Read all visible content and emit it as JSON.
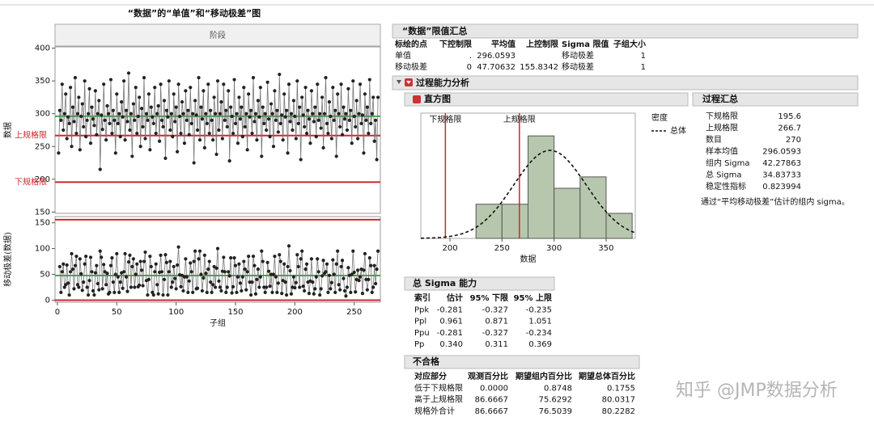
{
  "left_title": "“数据”的“单值”和“移动极差”图",
  "phase_header": "阶段",
  "chart_data": [
    {
      "type": "line",
      "ylabel": "数据",
      "ylim": [
        148,
        402
      ],
      "yticks": [
        150,
        200,
        250,
        300,
        350,
        400
      ],
      "xlim": [
        -2,
        272
      ],
      "color": "#222222",
      "lines": [
        {
          "value": 296.0593,
          "color": "#3cb043"
        },
        {
          "value": 266.7,
          "color": "#d0262e",
          "label": "上规格限"
        },
        {
          "value": 195.6,
          "color": "#d0262e",
          "label": "下规格限"
        }
      ],
      "values": [
        240,
        305,
        290,
        345,
        275,
        300,
        330,
        262,
        295,
        285,
        340,
        250,
        310,
        288,
        355,
        270,
        300,
        325,
        245,
        296,
        315,
        280,
        350,
        265,
        290,
        300,
        338,
        255,
        310,
        292,
        282,
        335,
        268,
        300,
        320,
        215,
        298,
        276,
        345,
        290,
        260,
        312,
        300,
        285,
        352,
        270,
        305,
        290,
        240,
        330,
        285,
        300,
        265,
        318,
        295,
        350,
        260,
        305,
        288,
        362,
        275,
        300,
        235,
        315,
        290,
        340,
        270,
        296,
        325,
        250,
        308,
        280,
        355,
        262,
        300,
        290,
        330,
        245,
        310,
        295,
        285,
        340,
        270,
        300,
        312,
        258,
        345,
        290,
        280,
        320,
        232,
        305,
        295,
        350,
        275,
        300,
        265,
        330,
        288,
        310,
        242,
        345,
        296,
        270,
        318,
        300,
        255,
        335,
        290,
        305,
        268,
        340,
        285,
        300,
        225,
        320,
        298,
        275,
        355,
        260,
        310,
        292,
        335,
        248,
        300,
        285,
        345,
        270,
        305,
        290,
        260,
        325,
        300,
        238,
        350,
        275,
        300,
        318,
        262,
        345,
        290,
        305,
        280,
        335,
        228,
        310,
        296,
        270,
        352,
        285,
        300,
        255,
        325,
        292,
        310,
        265,
        340,
        280,
        300,
        245,
        330,
        295,
        305,
        270,
        355,
        288,
        300,
        260,
        320,
        295,
        340,
        235,
        310,
        285,
        300,
        275,
        348,
        292,
        265,
        315,
        300,
        250,
        335,
        290,
        305,
        272,
        360,
        285,
        298,
        260,
        330,
        295,
        305,
        240,
        345,
        288,
        300,
        275,
        320,
        296,
        262,
        350,
        285,
        310,
        230,
        325,
        298,
        280,
        340,
        270,
        305,
        292,
        255,
        335,
        300,
        288,
        310,
        265,
        345,
        290,
        300,
        278,
        325,
        248,
        300,
        355,
        285,
        270,
        318,
        296,
        262,
        340,
        290,
        305,
        235,
        330,
        300,
        280,
        345,
        268,
        310,
        292,
        300,
        275,
        338,
        290,
        305,
        255,
        350,
        296,
        280,
        320,
        262,
        300,
        345,
        285,
        298,
        240,
        330,
        290,
        310,
        270,
        352,
        285,
        300,
        325,
        258,
        290,
        230,
        325
      ]
    },
    {
      "type": "line",
      "ylabel": "移动极差(数据)",
      "xlabel": "子组",
      "ylim": [
        -4,
        162
      ],
      "yticks": [
        0,
        50,
        100,
        150
      ],
      "xlim": [
        -2,
        272
      ],
      "xticks": [
        0,
        50,
        100,
        150,
        200,
        250
      ],
      "color": "#222222",
      "lines": [
        {
          "value": 47.70632,
          "color": "#3cb043"
        },
        {
          "value": 155.8342,
          "color": "#d0262e"
        },
        {
          "value": 0,
          "color": "#d0262e"
        }
      ],
      "values": [
        null,
        65,
        15,
        55,
        70,
        25,
        30,
        68,
        33,
        10,
        55,
        90,
        60,
        22,
        67,
        85,
        30,
        25,
        80,
        51,
        19,
        35,
        70,
        85,
        25,
        10,
        38,
        83,
        55,
        18,
        10,
        53,
        67,
        32,
        20,
        95,
        83,
        22,
        69,
        55,
        30,
        52,
        12,
        15,
        67,
        82,
        35,
        15,
        50,
        90,
        45,
        15,
        35,
        53,
        23,
        55,
        90,
        45,
        17,
        74,
        87,
        25,
        65,
        80,
        25,
        50,
        70,
        26,
        29,
        75,
        58,
        28,
        75,
        93,
        38,
        10,
        40,
        85,
        65,
        15,
        10,
        55,
        70,
        30,
        12,
        54,
        87,
        55,
        10,
        40,
        88,
        73,
        10,
        55,
        75,
        25,
        35,
        65,
        42,
        22,
        68,
        103,
        49,
        26,
        48,
        18,
        45,
        80,
        45,
        15,
        37,
        72,
        55,
        15,
        75,
        95,
        22,
        23,
        80,
        95,
        50,
        18,
        43,
        87,
        52,
        15,
        60,
        75,
        35,
        15,
        30,
        65,
        25,
        62,
        100,
        37,
        25,
        18,
        56,
        83,
        55,
        15,
        25,
        55,
        47,
        82,
        14,
        26,
        82,
        67,
        15,
        45,
        70,
        33,
        18,
        45,
        75,
        60,
        20,
        55,
        85,
        35,
        10,
        35,
        85,
        67,
        12,
        40,
        60,
        25,
        45,
        95,
        75,
        25,
        15,
        25,
        73,
        56,
        27,
        50,
        15,
        50,
        85,
        45,
        15,
        33,
        88,
        75,
        13,
        38,
        70,
        35,
        10,
        65,
        105,
        57,
        12,
        25,
        45,
        24,
        34,
        88,
        65,
        25,
        80,
        95,
        27,
        18,
        60,
        70,
        35,
        13,
        37,
        80,
        35,
        12,
        22,
        45,
        80,
        55,
        10,
        22,
        47,
        77,
        52,
        55,
        70,
        15,
        48,
        22,
        34,
        78,
        50,
        15,
        70,
        95,
        30,
        20,
        65,
        77,
        42,
        18,
        8,
        25,
        63,
        48,
        15,
        50,
        95,
        54,
        16,
        40,
        58,
        38,
        45,
        60,
        13,
        58,
        90,
        40,
        20,
        40,
        82,
        67,
        15,
        25,
        67,
        32,
        60,
        95
      ]
    },
    {
      "type": "histogram",
      "xlabel": "数据",
      "xlim": [
        172,
        378
      ],
      "xticks": [
        200,
        250,
        300,
        350
      ],
      "ylim": [
        0,
        110
      ],
      "bins": [
        225,
        250,
        275,
        300,
        325,
        350,
        375
      ],
      "counts": [
        30,
        30,
        90,
        44,
        54,
        22
      ],
      "color": "#b7c7ad",
      "spec_lines": [
        {
          "value": 195.6,
          "label": "下规格限"
        },
        {
          "value": 266.7,
          "label": "上规格限"
        }
      ],
      "density": {
        "title": "密度",
        "name": "总体",
        "mean": 296.0593,
        "sigma": 34.83733
      }
    }
  ],
  "limits_summary": {
    "title": "“数据”限值汇总",
    "columns": [
      "标绘的点",
      "下控制限",
      "平均值",
      "上控制限",
      "Sigma 限值",
      "子组大小"
    ],
    "rows": [
      [
        "单值",
        ".",
        "296.0593",
        null,
        "移动极差",
        "1"
      ],
      [
        "移动极差",
        "0",
        "47.70632",
        "155.8342",
        "移动极差",
        "1"
      ]
    ]
  },
  "capability_title": "过程能力分析",
  "histogram_title": "直方图",
  "process_summary": {
    "title": "过程汇总",
    "rows": [
      [
        "下规格限",
        "195.6"
      ],
      [
        "上规格限",
        "266.7"
      ],
      [
        "数目",
        "270"
      ],
      [
        "样本均值",
        "296.0593"
      ],
      [
        "组内 Sigma",
        "42.27863"
      ],
      [
        "总 Sigma",
        "34.83733"
      ],
      [
        "稳定性指标",
        "0.823994"
      ]
    ],
    "note": "通过“平均移动极差”估计的组内 sigma。"
  },
  "overall_sigma": {
    "title": "总 Sigma 能力",
    "columns": [
      "索引",
      "估计",
      "95% 下限",
      "95% 上限"
    ],
    "rows": [
      [
        "Ppk",
        "-0.281",
        "-0.327",
        "-0.235"
      ],
      [
        "Ppl",
        "0.961",
        "0.871",
        "1.051"
      ],
      [
        "Ppu",
        "-0.281",
        "-0.327",
        "-0.234"
      ],
      [
        "Pp",
        "0.340",
        "0.311",
        "0.369"
      ]
    ]
  },
  "nonconformance": {
    "title": "不合格",
    "columns": [
      "对应部分",
      "观测百分比",
      "期望组内百分比",
      "期望总体百分比"
    ],
    "rows": [
      [
        "低于下规格限",
        "0.0000",
        "0.8748",
        "0.1755"
      ],
      [
        "高于上规格限",
        "86.6667",
        "75.6292",
        "80.0317"
      ],
      [
        "规格外合计",
        "86.6667",
        "76.5039",
        "80.2282"
      ]
    ]
  },
  "watermark": "知乎 @JMP数据分析"
}
